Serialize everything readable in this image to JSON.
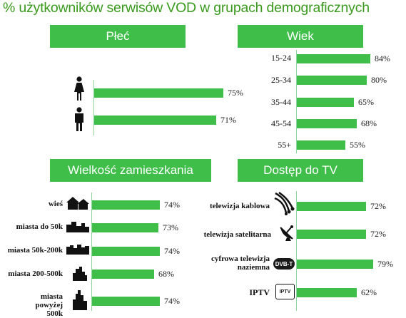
{
  "title": "% użytkowników serwisów VOD w grupach demograficznych",
  "colors": {
    "bar": "#3fbf4a",
    "title": "#3a9a1e",
    "header_text": "#ffffff"
  },
  "chart_data": [
    {
      "type": "bar",
      "orientation": "horizontal",
      "title": "Płeć",
      "categories": [
        "female-icon",
        "male-icon"
      ],
      "values": [
        75,
        71
      ],
      "value_labels": [
        "75%",
        "71%"
      ],
      "xlim": [
        0,
        100
      ]
    },
    {
      "type": "bar",
      "orientation": "horizontal",
      "title": "Wiek",
      "categories": [
        "15-24",
        "25-34",
        "35-44",
        "45-54",
        "55+"
      ],
      "values": [
        84,
        80,
        65,
        68,
        55
      ],
      "value_labels": [
        "84%",
        "80%",
        "65%",
        "68%",
        "55%"
      ],
      "xlim": [
        0,
        100
      ]
    },
    {
      "type": "bar",
      "orientation": "horizontal",
      "title": "Wielkość zamieszkania",
      "categories": [
        "wieś",
        "miasta do 50k",
        "miasta 50k-200k",
        "miasta 200-500k",
        "miasta powyżej 500k"
      ],
      "values": [
        74,
        73,
        74,
        68,
        74
      ],
      "value_labels": [
        "74%",
        "73%",
        "74%",
        "68%",
        "74%"
      ],
      "xlim": [
        0,
        100
      ]
    },
    {
      "type": "bar",
      "orientation": "horizontal",
      "title": "Dostęp do TV",
      "categories": [
        "telewizja kablowa",
        "telewizja satelitarna",
        "cyfrowa telewizja naziemna",
        "IPTV"
      ],
      "values": [
        72,
        72,
        79,
        62
      ],
      "value_labels": [
        "72%",
        "72%",
        "79%",
        "62%"
      ],
      "xlim": [
        0,
        100
      ]
    }
  ],
  "badges": {
    "dvbt": "DVB-T",
    "iptv": "IPTV"
  }
}
